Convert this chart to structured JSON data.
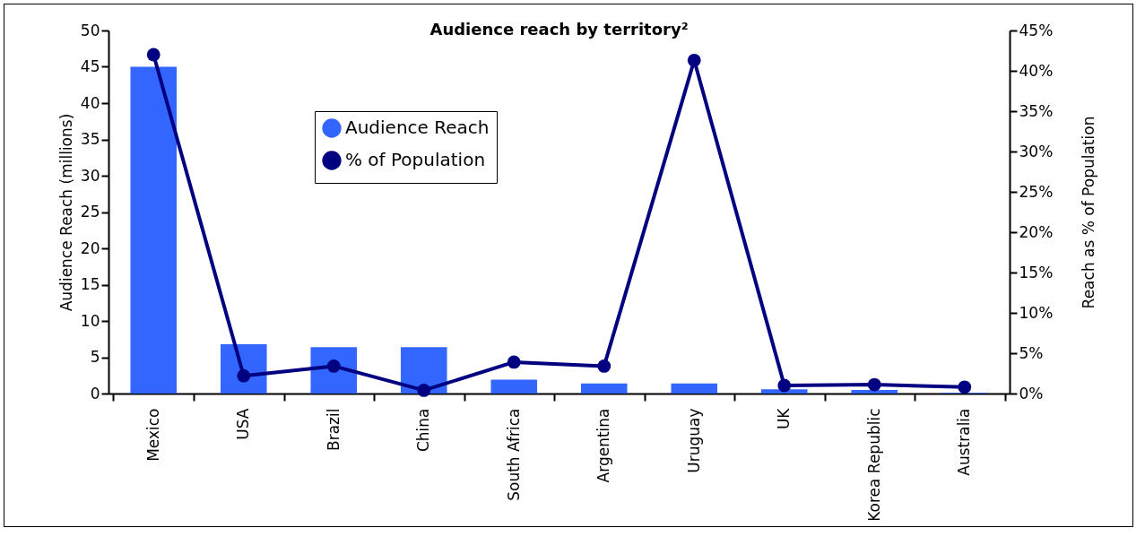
{
  "chart_data": {
    "type": "bar",
    "title": "Audience reach by territory²",
    "ylabel": "Audience Reach (millions)",
    "y2label": "Reach as % of Population",
    "categories": [
      "Mexico",
      "USA",
      "Brazil",
      "China",
      "South Africa",
      "Argentina",
      "Uruguay",
      "UK",
      "Korea Republic",
      "Australia"
    ],
    "series": [
      {
        "name": "Audience Reach",
        "color": "#3366ff",
        "values": [
          45,
          6.8,
          6.4,
          6.4,
          1.9,
          1.4,
          1.4,
          0.6,
          0.5,
          0.1
        ]
      },
      {
        "name": "% of Population",
        "type": "line",
        "axis": "y2",
        "color": "#000080",
        "marker": "circle",
        "values": [
          42.0,
          2.2,
          3.4,
          0.4,
          3.9,
          3.4,
          41.3,
          1.0,
          1.1,
          0.8
        ]
      }
    ],
    "ylim": [
      0,
      50
    ],
    "yticks": [
      0,
      5,
      10,
      15,
      20,
      25,
      30,
      35,
      40,
      45,
      50
    ],
    "y2lim": [
      0,
      45
    ],
    "y2ticks": [
      {
        "value": 0,
        "label": "0%"
      },
      {
        "value": 5,
        "label": "5%"
      },
      {
        "value": 10,
        "label": "10%"
      },
      {
        "value": 15,
        "label": "15%"
      },
      {
        "value": 20,
        "label": "20%"
      },
      {
        "value": 25,
        "label": "25%"
      },
      {
        "value": 30,
        "label": "30%"
      },
      {
        "value": 35,
        "label": "35%"
      },
      {
        "value": 40,
        "label": "40%"
      },
      {
        "value": 45,
        "label": "45%"
      }
    ],
    "legend": "top left",
    "grid": false
  }
}
